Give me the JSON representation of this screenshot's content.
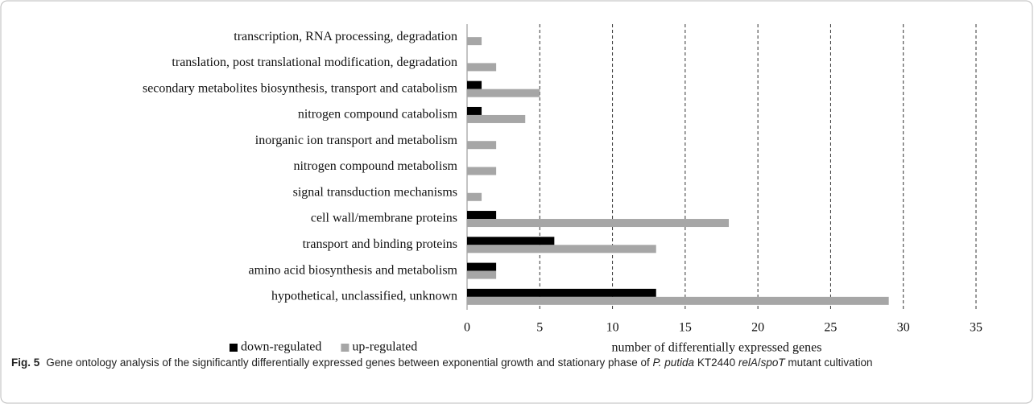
{
  "chart_data": {
    "type": "hbar",
    "categories": [
      "transcription, RNA processing, degradation",
      "translation, post translational modification, degradation",
      "secondary metabolites biosynthesis, transport and catabolism",
      "nitrogen compound catabolism",
      "inorganic ion transport and metabolism",
      "nitrogen compound metabolism",
      "signal transduction mechanisms",
      "cell wall/membrane proteins",
      "transport and binding proteins",
      "amino acid biosynthesis and metabolism",
      "hypothetical, unclassified, unknown"
    ],
    "series": [
      {
        "name": "down-regulated",
        "color": "#000000",
        "values": [
          0,
          0,
          1,
          1,
          0,
          0,
          0,
          2,
          6,
          2,
          13
        ]
      },
      {
        "name": "up-regulated",
        "color": "#a6a6a6",
        "values": [
          1,
          2,
          5,
          4,
          2,
          2,
          1,
          18,
          13,
          2,
          29
        ]
      }
    ],
    "xlabel": "number of differentially expressed genes",
    "xlim": [
      0,
      35
    ],
    "xticks": [
      0,
      5,
      10,
      15,
      20,
      25,
      30,
      35
    ],
    "grid": true,
    "legend": "bottom-left"
  },
  "caption": {
    "label": "Fig. 5",
    "text_1": "Gene ontology analysis of the significantly differentially expressed genes between exponential growth and stationary phase of ",
    "italic_1": "P. putida",
    "text_2": " KT2440 ",
    "italic_2": "relA",
    "text_3": "/",
    "italic_3": "spoT",
    "text_4": " mutant cultivation"
  }
}
